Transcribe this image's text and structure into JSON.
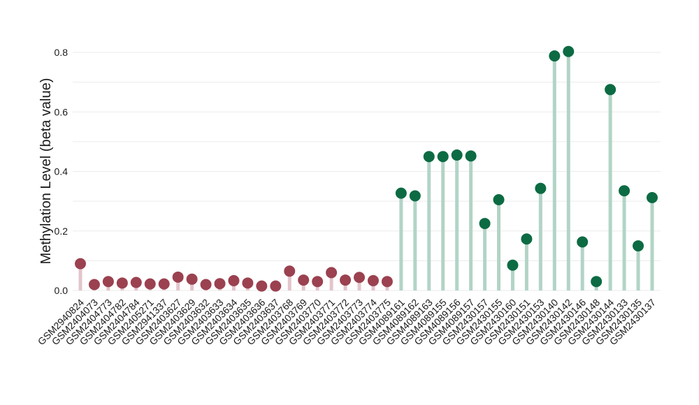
{
  "chart_data": {
    "type": "lollipop",
    "ylabel": "Methylation Level (beta value)",
    "xlabel": "",
    "ylim": [
      -0.02,
      0.84
    ],
    "yticks": [
      0.0,
      0.2,
      0.4,
      0.6,
      0.8
    ],
    "ytick_labels": [
      "0.0",
      "0.2",
      "0.4",
      "0.6",
      "0.8"
    ],
    "grid": true,
    "categories": [
      "GSM2940824",
      "GSM2404073",
      "GSM2404773",
      "GSM2404782",
      "GSM2404784",
      "GSM2405271",
      "GSM2941337",
      "GSM2403627",
      "GSM2403629",
      "GSM2403632",
      "GSM2403633",
      "GSM2403634",
      "GSM2403635",
      "GSM2403636",
      "GSM2403637",
      "GSM2403768",
      "GSM2403769",
      "GSM2403770",
      "GSM2403771",
      "GSM2403772",
      "GSM2403773",
      "GSM2403774",
      "GSM2403775",
      "GSM4089161",
      "GSM4089162",
      "GSM4089163",
      "GSM4089155",
      "GSM4089156",
      "GSM4089157",
      "GSM2430157",
      "GSM2430155",
      "GSM2430160",
      "GSM2430151",
      "GSM2430153",
      "GSM2430140",
      "GSM2430142",
      "GSM2430146",
      "GSM2430148",
      "GSM2430144",
      "GSM2430133",
      "GSM2430135",
      "GSM2430137"
    ],
    "values": [
      0.09,
      0.02,
      0.03,
      0.025,
      0.027,
      0.022,
      0.022,
      0.045,
      0.038,
      0.02,
      0.023,
      0.033,
      0.025,
      0.015,
      0.015,
      0.065,
      0.035,
      0.03,
      0.06,
      0.035,
      0.044,
      0.033,
      0.03,
      0.327,
      0.318,
      0.45,
      0.45,
      0.455,
      0.452,
      0.225,
      0.305,
      0.085,
      0.173,
      0.343,
      0.788,
      0.803,
      0.163,
      0.03,
      0.675,
      0.335,
      0.15,
      0.312
    ],
    "groups": [
      0,
      0,
      0,
      0,
      0,
      0,
      0,
      0,
      0,
      0,
      0,
      0,
      0,
      0,
      0,
      0,
      0,
      0,
      0,
      0,
      0,
      0,
      0,
      1,
      1,
      1,
      1,
      1,
      1,
      1,
      1,
      1,
      1,
      1,
      1,
      1,
      1,
      1,
      1,
      1,
      1,
      1
    ],
    "group_colors": {
      "0": {
        "dot": "#9b4150",
        "stem": "#e3c5cb"
      },
      "1": {
        "dot": "#0c6b43",
        "stem": "#b2d4c6"
      }
    },
    "grid_color": "#ebebeb"
  }
}
